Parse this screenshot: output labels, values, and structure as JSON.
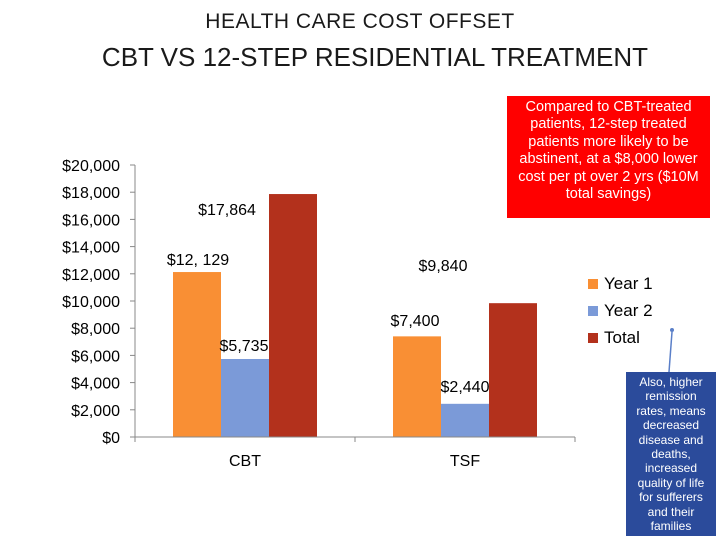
{
  "title": {
    "line1": "HEALTH CARE COST OFFSET",
    "line2": "CBT VS 12-STEP RESIDENTIAL TREATMENT"
  },
  "callouts": {
    "red": "Compared to CBT-treated patients, 12-step treated patients more likely to be abstinent, at a $8,000 lower cost per pt over 2 yrs ($10M total savings)",
    "blue": "Also, higher remission rates, means decreased disease and deaths, increased quality of life for sufferers and their families"
  },
  "chart_data": {
    "type": "bar",
    "categories": [
      "CBT",
      "TSF"
    ],
    "series": [
      {
        "name": "Year 1",
        "values": [
          12129,
          7400
        ],
        "labels": [
          "$12, 129",
          "$7,400"
        ],
        "color": "#f98f34"
      },
      {
        "name": "Year 2",
        "values": [
          5735,
          2440
        ],
        "labels": [
          "$5,735",
          "$2,440"
        ],
        "color": "#7b9ad8"
      },
      {
        "name": "Total",
        "values": [
          17864,
          9840
        ],
        "labels": [
          "$17,864",
          "$9,840"
        ],
        "color": "#b3311c"
      }
    ],
    "ylim": [
      0,
      20000
    ],
    "yticks": [
      0,
      2000,
      4000,
      6000,
      8000,
      10000,
      12000,
      14000,
      16000,
      18000,
      20000
    ],
    "ytick_labels": [
      "$0",
      "$2,000",
      "$4,000",
      "$6,000",
      "$8,000",
      "$10,000",
      "$12,000",
      "$14,000",
      "$16,000",
      "$18,000",
      "$20,000"
    ],
    "legend_position": "right",
    "grid": false
  }
}
